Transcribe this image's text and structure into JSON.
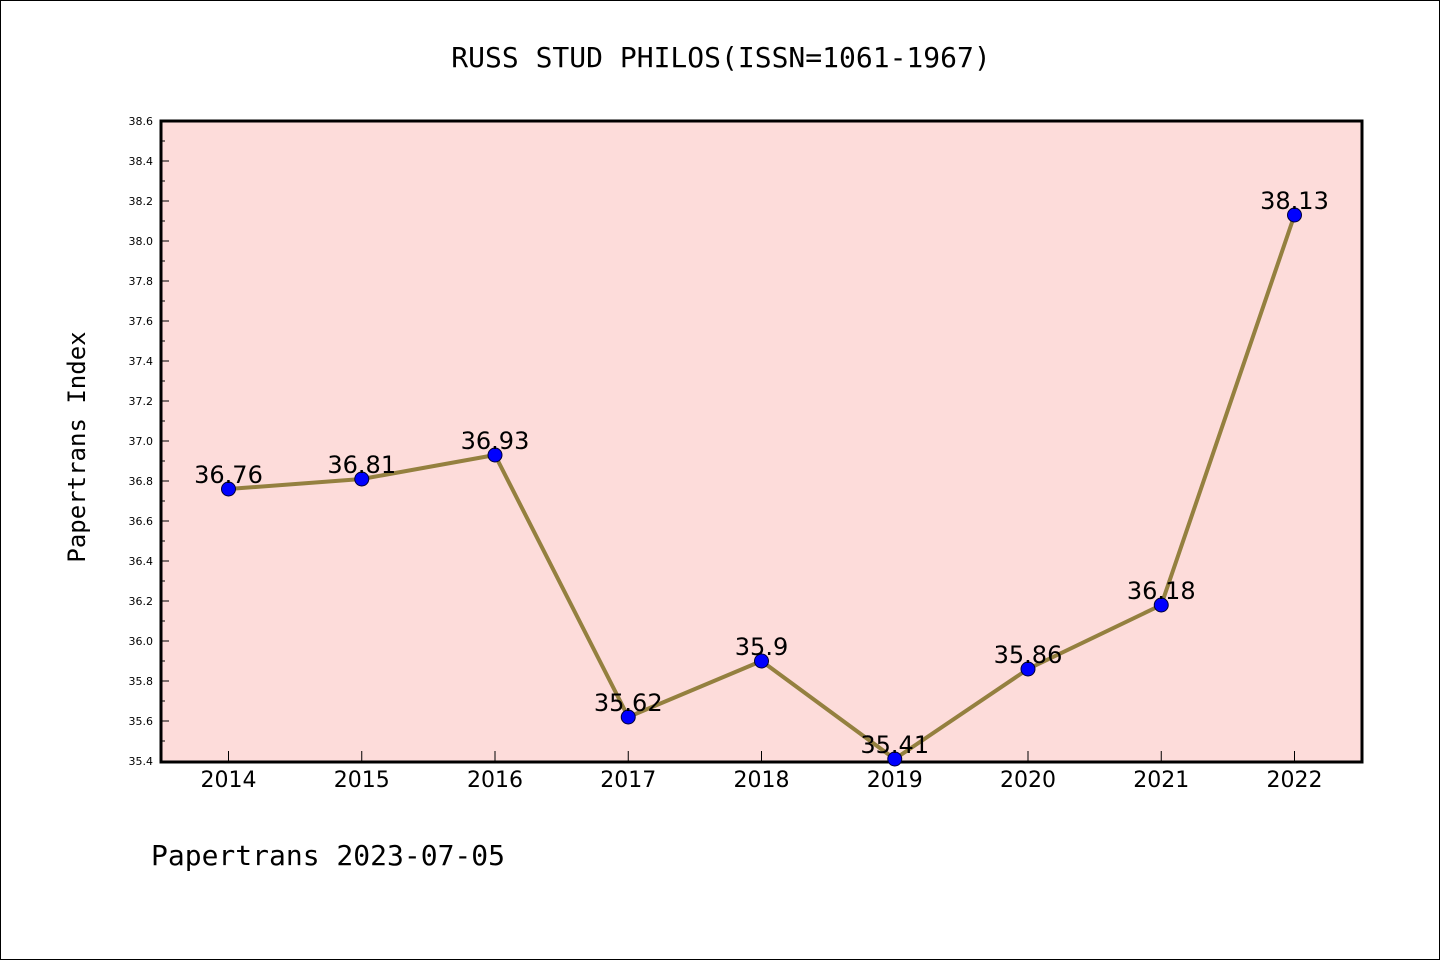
{
  "chart_data": {
    "type": "line",
    "title": "RUSS STUD PHILOS(ISSN=1061-1967)",
    "ylabel": "Papertrans Index",
    "xlabel": "",
    "categories": [
      "2014",
      "2015",
      "2016",
      "2017",
      "2018",
      "2019",
      "2020",
      "2021",
      "2022"
    ],
    "series": [
      {
        "values": [
          36.76,
          36.81,
          36.93,
          35.62,
          35.9,
          35.41,
          35.86,
          36.18,
          38.13
        ],
        "labels": [
          "36.76",
          "36.81",
          "36.93",
          "35.62",
          "35.9",
          "35.41",
          "35.86",
          "36.18",
          "38.13"
        ],
        "line_color": "#94803f",
        "marker_color": "#0000ff"
      }
    ],
    "ylim": [
      35.4,
      38.6
    ],
    "yticks": [
      "35.4",
      "35.6",
      "35.8",
      "36.0",
      "36.2",
      "36.4",
      "36.6",
      "36.8",
      "37.0",
      "37.2",
      "37.4",
      "37.6",
      "37.8",
      "38.0",
      "38.2",
      "38.4",
      "38.6"
    ],
    "grid": false,
    "legend": "none",
    "plot_background": "#fddcda"
  },
  "footer": "Papertrans 2023-07-05"
}
